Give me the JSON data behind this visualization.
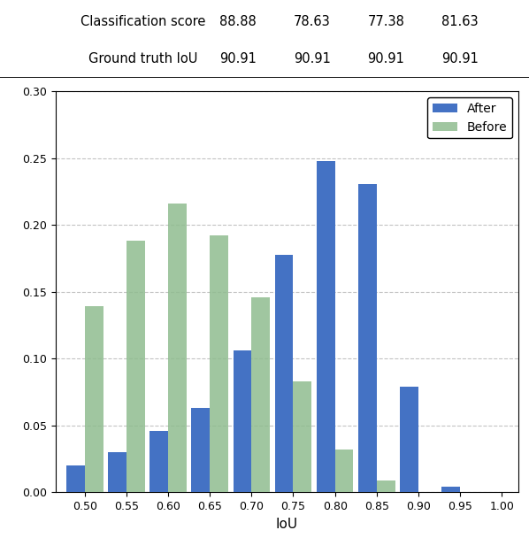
{
  "iou_bins": [
    0.5,
    0.55,
    0.6,
    0.65,
    0.7,
    0.75,
    0.8,
    0.85,
    0.9,
    0.95
  ],
  "after_values": [
    0.02,
    0.03,
    0.046,
    0.063,
    0.106,
    0.178,
    0.248,
    0.231,
    0.079,
    0.004
  ],
  "before_values": [
    0.139,
    0.188,
    0.216,
    0.192,
    0.146,
    0.083,
    0.032,
    0.009,
    0.0,
    0.0
  ],
  "after_color": "#4472c4",
  "before_color": "#8fbc8f",
  "xlabel": "IoU",
  "ylim": [
    0.0,
    0.3
  ],
  "yticks": [
    0.0,
    0.05,
    0.1,
    0.15,
    0.2,
    0.25,
    0.3
  ],
  "xticks": [
    0.5,
    0.55,
    0.6,
    0.65,
    0.7,
    0.75,
    0.8,
    0.85,
    0.9,
    0.95,
    1.0
  ],
  "bar_width": 0.022,
  "legend_labels": [
    "After",
    "Before"
  ],
  "grid_color": "#aaaaaa",
  "grid_linestyle": "--",
  "grid_alpha": 0.7,
  "table_text": {
    "row1_label": "Classification score",
    "row2_label": "Ground truth IoU",
    "row1_values": [
      "88.88",
      "78.63",
      "77.38",
      "81.63"
    ],
    "row2_values": [
      "90.91",
      "90.91",
      "90.91",
      "90.91"
    ]
  },
  "figure_size": [
    5.98,
    6.08
  ],
  "dpi": 100
}
